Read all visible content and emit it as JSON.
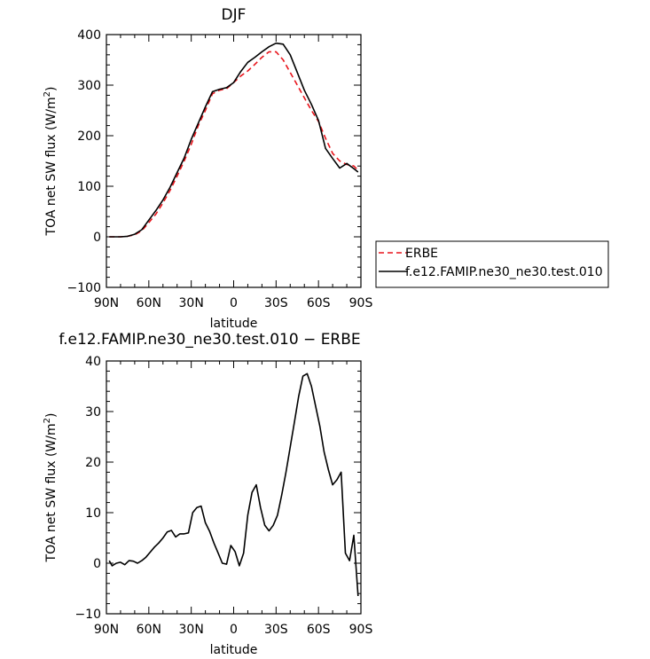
{
  "chart_data": [
    {
      "type": "line",
      "title": "DJF",
      "xlabel": "latitude",
      "ylabel": "TOA net SW flux (W/m",
      "ylabel_sup": "2",
      "ylabel_close": ")",
      "xlim": [
        90,
        -90
      ],
      "ylim": [
        -100,
        400
      ],
      "xticks": [
        90,
        60,
        30,
        0,
        -30,
        -60,
        -90
      ],
      "xtick_labels": [
        "90N",
        "60N",
        "30N",
        "0",
        "30S",
        "60S",
        "90S"
      ],
      "yticks": [
        -100,
        0,
        100,
        200,
        300,
        400
      ],
      "ytick_labels": [
        "−100",
        "0",
        "100",
        "200",
        "300",
        "400"
      ],
      "legend_placement": "right-bottom outside",
      "series": [
        {
          "name": "ERBE",
          "color": "#e8141b",
          "dash": "dashed",
          "x": [
            88,
            85,
            80,
            75,
            70,
            65,
            60,
            55,
            50,
            45,
            40,
            35,
            30,
            25,
            20,
            15,
            10,
            5,
            0,
            -5,
            -10,
            -15,
            -20,
            -25,
            -30,
            -35,
            -40,
            -45,
            -50,
            -55,
            -60,
            -65,
            -70,
            -75,
            -80,
            -85,
            -88
          ],
          "y": [
            0,
            0,
            0,
            1,
            4,
            12,
            28,
            45,
            67,
            92,
            120,
            150,
            183,
            220,
            250,
            283,
            290,
            293,
            305,
            318,
            328,
            341,
            355,
            366,
            366,
            350,
            325,
            300,
            275,
            250,
            228,
            195,
            165,
            150,
            143,
            140,
            132
          ]
        },
        {
          "name": "f.e12.FAMIP.ne30_ne30.test.010",
          "color": "#000000",
          "dash": "solid",
          "x": [
            88,
            85,
            80,
            75,
            70,
            65,
            60,
            55,
            50,
            45,
            40,
            35,
            30,
            25,
            20,
            15,
            10,
            5,
            0,
            -5,
            -10,
            -15,
            -20,
            -25,
            -30,
            -35,
            -40,
            -45,
            -50,
            -55,
            -60,
            -65,
            -70,
            -75,
            -80,
            -85,
            -88
          ],
          "y": [
            0,
            0,
            0,
            1,
            5,
            14,
            33,
            52,
            73,
            98,
            127,
            156,
            193,
            225,
            257,
            287,
            292,
            295,
            305,
            327,
            345,
            355,
            366,
            376,
            383,
            381,
            360,
            325,
            290,
            262,
            230,
            175,
            155,
            136,
            145,
            135,
            128
          ]
        }
      ]
    },
    {
      "type": "line",
      "title": "f.e12.FAMIP.ne30_ne30.test.010 − ERBE",
      "xlabel": "latitude",
      "ylabel": "TOA net SW flux (W/m",
      "ylabel_sup": "2",
      "ylabel_close": ")",
      "xlim": [
        90,
        -90
      ],
      "ylim": [
        -10,
        40
      ],
      "xticks": [
        90,
        60,
        30,
        0,
        -30,
        -60,
        -90
      ],
      "xtick_labels": [
        "90N",
        "60N",
        "30N",
        "0",
        "30S",
        "60S",
        "90S"
      ],
      "yticks": [
        -10,
        0,
        10,
        20,
        30,
        40
      ],
      "ytick_labels": [
        "−10",
        "0",
        "10",
        "20",
        "30",
        "40"
      ],
      "series": [
        {
          "color": "#000000",
          "dash": "solid",
          "x": [
            88,
            86,
            83,
            80,
            77,
            74,
            71,
            68,
            65,
            62,
            59,
            56,
            53,
            50,
            47,
            44,
            41,
            38,
            35,
            32,
            29,
            26,
            23,
            20,
            17,
            14,
            11,
            8,
            5,
            2,
            -1,
            -4,
            -7,
            -10,
            -13,
            -16,
            -19,
            -22,
            -25,
            -28,
            -31,
            -34,
            -37,
            -40,
            -43,
            -46,
            -49,
            -52,
            -55,
            -58,
            -61,
            -64,
            -67,
            -70,
            -73,
            -76,
            -79,
            -82,
            -85,
            -88
          ],
          "y": [
            0.5,
            -0.5,
            0,
            0.2,
            -0.3,
            0.5,
            0.4,
            0,
            0.5,
            1.2,
            2.2,
            3.2,
            4,
            5,
            6.2,
            6.5,
            5.2,
            5.8,
            5.8,
            6,
            10,
            11,
            11.3,
            8,
            6.3,
            4,
            2,
            0,
            -0.2,
            3.5,
            2.3,
            -0.5,
            2,
            9.5,
            14,
            15.5,
            11,
            7.5,
            6.4,
            7.5,
            9.5,
            13.5,
            18,
            23,
            28,
            33,
            37,
            37.5,
            35,
            31,
            27,
            22,
            18.5,
            15.5,
            16.5,
            18,
            2,
            0.5,
            5.5,
            -6.5
          ]
        }
      ]
    }
  ]
}
